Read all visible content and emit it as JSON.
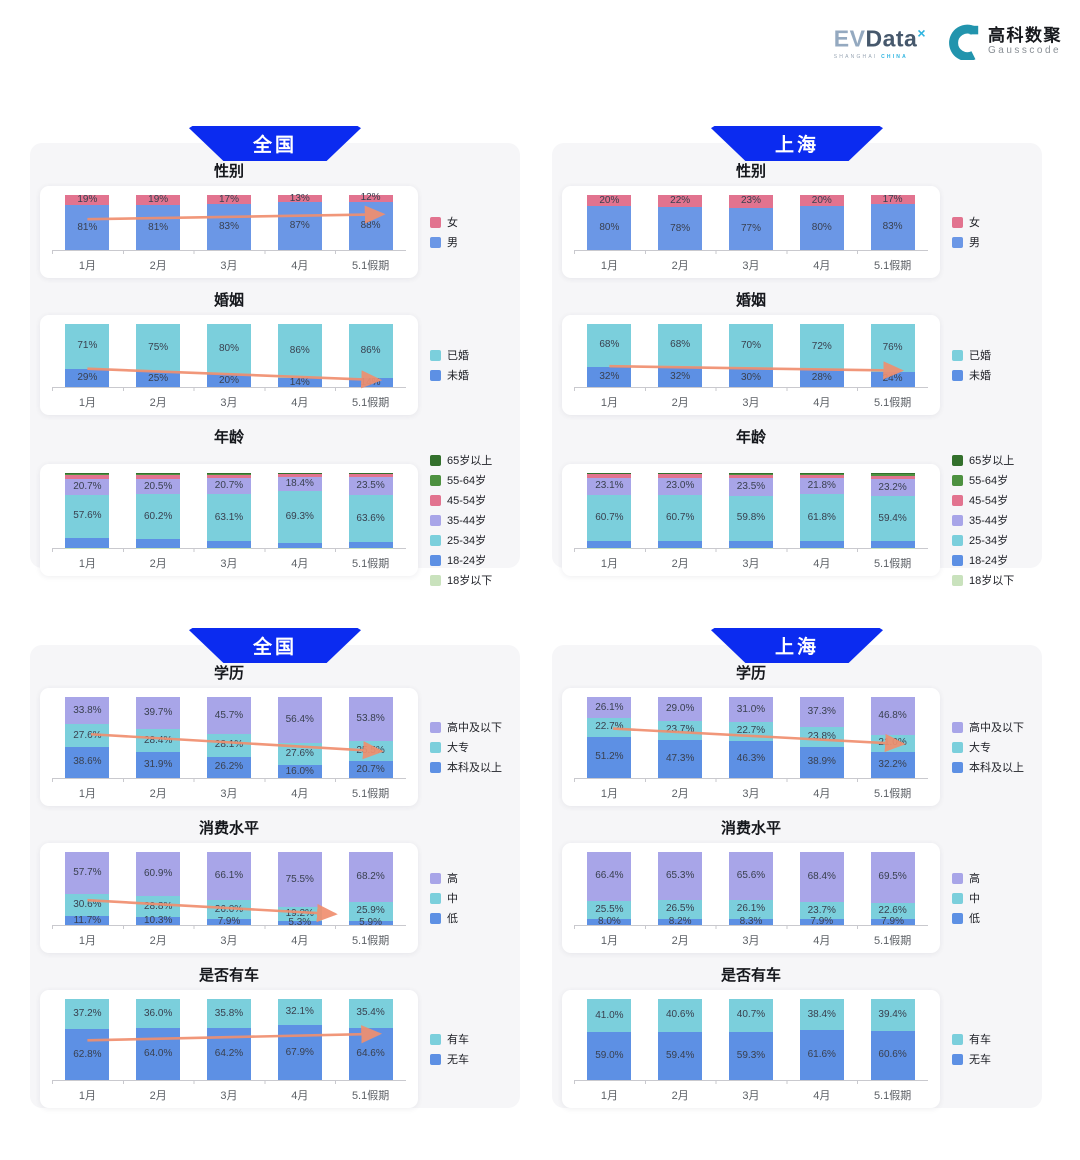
{
  "header": {
    "evdata_logo": {
      "prefix": "EV",
      "name": "Data",
      "sup": "×",
      "subtitle_1": "SHANGHAI",
      "subtitle_2": "CHINA"
    },
    "gausscode_logo": {
      "cn": "高科数聚",
      "en": "Gausscode"
    }
  },
  "months": [
    "1月",
    "2月",
    "3月",
    "4月",
    "5.1假期"
  ],
  "colors": {
    "banner_blue": "#0b2bf0",
    "arrow": "#f08f6f",
    "female_pink": "#e2738f",
    "male_blue": "#6b97e6",
    "teal": "#7bcfdc",
    "deep_blue": "#5d90e4",
    "purple": "#a8a5e8",
    "dark_green": "#33702c",
    "green": "#4d9140",
    "pale_green": "#c9e2bd"
  },
  "panels": [
    {
      "region": "全国",
      "chart_indexes": [
        0,
        1,
        2
      ]
    },
    {
      "region": "上海",
      "chart_indexes": [
        3,
        4,
        5
      ]
    },
    {
      "region": "全国",
      "chart_indexes": [
        6,
        7,
        8
      ]
    },
    {
      "region": "上海",
      "chart_indexes": [
        9,
        10,
        11
      ]
    }
  ],
  "chart_data": [
    {
      "key": "gender",
      "region": "全国",
      "title": "性别",
      "type": "bar_stacked_100",
      "categories": [
        "1月",
        "2月",
        "3月",
        "4月",
        "5.1假期"
      ],
      "decimals": 0,
      "label_min": 0,
      "ylim": [
        0,
        100
      ],
      "legend_position": "right",
      "series": [
        {
          "name": "男",
          "color": "#6b97e6",
          "values": [
            81,
            81,
            83,
            87,
            88
          ]
        },
        {
          "name": "女",
          "color": "#e2738f",
          "values": [
            19,
            19,
            17,
            13,
            12
          ]
        }
      ],
      "legend": [
        {
          "name": "女",
          "color": "#e2738f"
        },
        {
          "name": "男",
          "color": "#6b97e6"
        }
      ],
      "arrow": {
        "x1": 0.1,
        "y1": 56,
        "x2": 0.935,
        "y2": 65
      }
    },
    {
      "key": "marriage",
      "region": "全国",
      "title": "婚姻",
      "type": "bar_stacked_100",
      "categories": [
        "1月",
        "2月",
        "3月",
        "4月",
        "5.1假期"
      ],
      "decimals": 0,
      "label_min": 0,
      "ylim": [
        0,
        100
      ],
      "legend_position": "right",
      "series": [
        {
          "name": "未婚",
          "color": "#5d90e4",
          "values": [
            29,
            25,
            20,
            14,
            14
          ]
        },
        {
          "name": "已婚",
          "color": "#7bcfdc",
          "values": [
            71,
            75,
            80,
            86,
            86
          ]
        }
      ],
      "legend": [
        {
          "name": "已婚",
          "color": "#7bcfdc"
        },
        {
          "name": "未婚",
          "color": "#5d90e4"
        }
      ],
      "arrow": {
        "x1": 0.1,
        "y1": 29,
        "x2": 0.925,
        "y2": 11
      }
    },
    {
      "key": "age",
      "region": "全国",
      "title": "年龄",
      "type": "bar_stacked_100",
      "categories": [
        "1月",
        "2月",
        "3月",
        "4月",
        "5.1假期"
      ],
      "decimals": 1,
      "label_min": 15,
      "ylim": [
        0,
        100
      ],
      "legend_position": "right",
      "series": [
        {
          "name": "18岁以下",
          "color": "#c9e2bd",
          "values": [
            0.5,
            0.5,
            0.5,
            0.4,
            0.4
          ],
          "estimated": true
        },
        {
          "name": "18-24岁",
          "color": "#5d90e4",
          "values": [
            13.0,
            11.0,
            8.5,
            6.0,
            7.0
          ],
          "estimated": true
        },
        {
          "name": "25-34岁",
          "color": "#7bcfdc",
          "values": [
            57.6,
            60.2,
            63.1,
            69.3,
            63.6
          ]
        },
        {
          "name": "35-44岁",
          "color": "#a8a5e8",
          "values": [
            20.7,
            20.5,
            20.7,
            18.4,
            23.5
          ]
        },
        {
          "name": "45-54岁",
          "color": "#e2738f",
          "values": [
            5.5,
            5.3,
            4.8,
            4.0,
            3.8
          ],
          "estimated": true
        },
        {
          "name": "55-64岁",
          "color": "#4d9140",
          "values": [
            2.0,
            1.8,
            1.7,
            1.4,
            1.2
          ],
          "estimated": true
        },
        {
          "name": "65岁以上",
          "color": "#33702c",
          "values": [
            0.7,
            0.7,
            0.7,
            0.5,
            0.5
          ],
          "estimated": true
        }
      ],
      "legend": [
        {
          "name": "65岁以上",
          "color": "#33702c"
        },
        {
          "name": "55-64岁",
          "color": "#4d9140"
        },
        {
          "name": "45-54岁",
          "color": "#e2738f"
        },
        {
          "name": "35-44岁",
          "color": "#a8a5e8"
        },
        {
          "name": "25-34岁",
          "color": "#7bcfdc"
        },
        {
          "name": "18-24岁",
          "color": "#5d90e4"
        },
        {
          "name": "18岁以下",
          "color": "#c9e2bd"
        }
      ],
      "arrow": null
    },
    {
      "key": "gender",
      "region": "上海",
      "title": "性别",
      "type": "bar_stacked_100",
      "categories": [
        "1月",
        "2月",
        "3月",
        "4月",
        "5.1假期"
      ],
      "decimals": 0,
      "label_min": 0,
      "ylim": [
        0,
        100
      ],
      "legend_position": "right",
      "series": [
        {
          "name": "男",
          "color": "#6b97e6",
          "values": [
            80,
            78,
            77,
            80,
            83
          ]
        },
        {
          "name": "女",
          "color": "#e2738f",
          "values": [
            20,
            22,
            23,
            20,
            17
          ]
        }
      ],
      "legend": [
        {
          "name": "女",
          "color": "#e2738f"
        },
        {
          "name": "男",
          "color": "#6b97e6"
        }
      ],
      "arrow": null
    },
    {
      "key": "marriage",
      "region": "上海",
      "title": "婚姻",
      "type": "bar_stacked_100",
      "categories": [
        "1月",
        "2月",
        "3月",
        "4月",
        "5.1假期"
      ],
      "decimals": 0,
      "label_min": 0,
      "ylim": [
        0,
        100
      ],
      "legend_position": "right",
      "series": [
        {
          "name": "未婚",
          "color": "#5d90e4",
          "values": [
            32,
            32,
            30,
            28,
            24
          ]
        },
        {
          "name": "已婚",
          "color": "#7bcfdc",
          "values": [
            68,
            68,
            70,
            72,
            76
          ]
        }
      ],
      "legend": [
        {
          "name": "已婚",
          "color": "#7bcfdc"
        },
        {
          "name": "未婚",
          "color": "#5d90e4"
        }
      ],
      "arrow": {
        "x1": 0.1,
        "y1": 33,
        "x2": 0.925,
        "y2": 26
      }
    },
    {
      "key": "age",
      "region": "上海",
      "title": "年龄",
      "type": "bar_stacked_100",
      "categories": [
        "1月",
        "2月",
        "3月",
        "4月",
        "5.1假期"
      ],
      "decimals": 1,
      "label_min": 15,
      "ylim": [
        0,
        100
      ],
      "legend_position": "right",
      "series": [
        {
          "name": "18岁以下",
          "color": "#c9e2bd",
          "values": [
            0.3,
            0.3,
            0.3,
            0.3,
            0.3
          ],
          "estimated": true
        },
        {
          "name": "18-24岁",
          "color": "#5d90e4",
          "values": [
            9.5,
            9.6,
            9.5,
            9.3,
            9.0
          ],
          "estimated": true
        },
        {
          "name": "25-34岁",
          "color": "#7bcfdc",
          "values": [
            60.7,
            60.7,
            59.8,
            61.8,
            59.4
          ]
        },
        {
          "name": "35-44岁",
          "color": "#a8a5e8",
          "values": [
            23.1,
            23.0,
            23.5,
            21.8,
            23.2
          ]
        },
        {
          "name": "45-54岁",
          "color": "#e2738f",
          "values": [
            4.5,
            4.5,
            4.8,
            4.8,
            4.6
          ],
          "estimated": true
        },
        {
          "name": "55-64岁",
          "color": "#4d9140",
          "values": [
            1.4,
            1.4,
            1.6,
            1.5,
            2.5
          ],
          "estimated": true
        },
        {
          "name": "65岁以上",
          "color": "#33702c",
          "values": [
            0.5,
            0.5,
            0.5,
            0.5,
            1.0
          ],
          "estimated": true
        }
      ],
      "legend": [
        {
          "name": "65岁以上",
          "color": "#33702c"
        },
        {
          "name": "55-64岁",
          "color": "#4d9140"
        },
        {
          "name": "45-54岁",
          "color": "#e2738f"
        },
        {
          "name": "35-44岁",
          "color": "#a8a5e8"
        },
        {
          "name": "25-34岁",
          "color": "#7bcfdc"
        },
        {
          "name": "18-24岁",
          "color": "#5d90e4"
        },
        {
          "name": "18岁以下",
          "color": "#c9e2bd"
        }
      ],
      "arrow": null
    },
    {
      "key": "education",
      "region": "全国",
      "title": "学历",
      "type": "bar_stacked_100",
      "categories": [
        "1月",
        "2月",
        "3月",
        "4月",
        "5.1假期"
      ],
      "decimals": 1,
      "label_min": 0,
      "ylim": [
        0,
        100
      ],
      "legend_position": "right",
      "series": [
        {
          "name": "本科及以上",
          "color": "#5d90e4",
          "values": [
            38.6,
            31.9,
            26.2,
            16.0,
            20.7
          ]
        },
        {
          "name": "大专",
          "color": "#7bcfdc",
          "values": [
            27.6,
            28.4,
            28.1,
            27.6,
            25.5
          ]
        },
        {
          "name": "高中及以下",
          "color": "#a8a5e8",
          "values": [
            33.8,
            39.7,
            45.7,
            56.4,
            53.8
          ]
        }
      ],
      "legend": [
        {
          "name": "高中及以下",
          "color": "#a8a5e8"
        },
        {
          "name": "大专",
          "color": "#7bcfdc"
        },
        {
          "name": "本科及以上",
          "color": "#5d90e4"
        }
      ],
      "arrow": {
        "x1": 0.11,
        "y1": 54,
        "x2": 0.93,
        "y2": 33
      }
    },
    {
      "key": "consumption",
      "region": "全国",
      "title": "消费水平",
      "type": "bar_stacked_100",
      "categories": [
        "1月",
        "2月",
        "3月",
        "4月",
        "5.1假期"
      ],
      "decimals": 1,
      "label_min": 0,
      "ylim": [
        0,
        100
      ],
      "legend_position": "right",
      "series": [
        {
          "name": "低",
          "color": "#5d90e4",
          "values": [
            11.7,
            10.3,
            7.9,
            5.3,
            5.9
          ]
        },
        {
          "name": "中",
          "color": "#7bcfdc",
          "values": [
            30.6,
            28.8,
            26.0,
            19.2,
            25.9
          ]
        },
        {
          "name": "高",
          "color": "#a8a5e8",
          "values": [
            57.7,
            60.9,
            66.1,
            75.5,
            68.2
          ]
        }
      ],
      "legend": [
        {
          "name": "高",
          "color": "#a8a5e8"
        },
        {
          "name": "中",
          "color": "#7bcfdc"
        },
        {
          "name": "低",
          "color": "#5d90e4"
        }
      ],
      "arrow": {
        "x1": 0.1,
        "y1": 34,
        "x2": 0.8,
        "y2": 15
      }
    },
    {
      "key": "car",
      "region": "全国",
      "title": "是否有车",
      "type": "bar_stacked_100",
      "categories": [
        "1月",
        "2月",
        "3月",
        "4月",
        "5.1假期"
      ],
      "decimals": 1,
      "label_min": 0,
      "ylim": [
        0,
        100
      ],
      "legend_position": "right",
      "series": [
        {
          "name": "无车",
          "color": "#5d90e4",
          "values": [
            62.8,
            64.0,
            64.2,
            67.9,
            64.6
          ]
        },
        {
          "name": "有车",
          "color": "#7bcfdc",
          "values": [
            37.2,
            36.0,
            35.8,
            32.1,
            35.4
          ]
        }
      ],
      "legend": [
        {
          "name": "有车",
          "color": "#7bcfdc"
        },
        {
          "name": "无车",
          "color": "#5d90e4"
        }
      ],
      "arrow": {
        "x1": 0.1,
        "y1": 49,
        "x2": 0.925,
        "y2": 57
      }
    },
    {
      "key": "education",
      "region": "上海",
      "title": "学历",
      "type": "bar_stacked_100",
      "categories": [
        "1月",
        "2月",
        "3月",
        "4月",
        "5.1假期"
      ],
      "decimals": 1,
      "label_min": 0,
      "ylim": [
        0,
        100
      ],
      "legend_position": "right",
      "series": [
        {
          "name": "本科及以上",
          "color": "#5d90e4",
          "values": [
            51.2,
            47.3,
            46.3,
            38.9,
            32.2
          ]
        },
        {
          "name": "大专",
          "color": "#7bcfdc",
          "values": [
            22.7,
            23.7,
            22.7,
            23.8,
            21.0
          ]
        },
        {
          "name": "高中及以下",
          "color": "#a8a5e8",
          "values": [
            26.1,
            29.0,
            31.0,
            37.3,
            46.8
          ]
        }
      ],
      "legend": [
        {
          "name": "高中及以下",
          "color": "#a8a5e8"
        },
        {
          "name": "大专",
          "color": "#7bcfdc"
        },
        {
          "name": "本科及以上",
          "color": "#5d90e4"
        }
      ],
      "arrow": {
        "x1": 0.11,
        "y1": 61,
        "x2": 0.93,
        "y2": 42
      }
    },
    {
      "key": "consumption",
      "region": "上海",
      "title": "消费水平",
      "type": "bar_stacked_100",
      "categories": [
        "1月",
        "2月",
        "3月",
        "4月",
        "5.1假期"
      ],
      "decimals": 1,
      "label_min": 0,
      "ylim": [
        0,
        100
      ],
      "legend_position": "right",
      "series": [
        {
          "name": "低",
          "color": "#5d90e4",
          "values": [
            8.0,
            8.2,
            8.3,
            7.9,
            7.9
          ]
        },
        {
          "name": "中",
          "color": "#7bcfdc",
          "values": [
            25.5,
            26.5,
            26.1,
            23.7,
            22.6
          ]
        },
        {
          "name": "高",
          "color": "#a8a5e8",
          "values": [
            66.4,
            65.3,
            65.6,
            68.4,
            69.5
          ]
        }
      ],
      "legend": [
        {
          "name": "高",
          "color": "#a8a5e8"
        },
        {
          "name": "中",
          "color": "#7bcfdc"
        },
        {
          "name": "低",
          "color": "#5d90e4"
        }
      ],
      "arrow": null
    },
    {
      "key": "car",
      "region": "上海",
      "title": "是否有车",
      "type": "bar_stacked_100",
      "categories": [
        "1月",
        "2月",
        "3月",
        "4月",
        "5.1假期"
      ],
      "decimals": 1,
      "label_min": 0,
      "ylim": [
        0,
        100
      ],
      "legend_position": "right",
      "series": [
        {
          "name": "无车",
          "color": "#5d90e4",
          "values": [
            59.0,
            59.4,
            59.3,
            61.6,
            60.6
          ]
        },
        {
          "name": "有车",
          "color": "#7bcfdc",
          "values": [
            41.0,
            40.6,
            40.7,
            38.4,
            39.4
          ]
        }
      ],
      "legend": [
        {
          "name": "有车",
          "color": "#7bcfdc"
        },
        {
          "name": "无车",
          "color": "#5d90e4"
        }
      ],
      "arrow": null
    }
  ]
}
